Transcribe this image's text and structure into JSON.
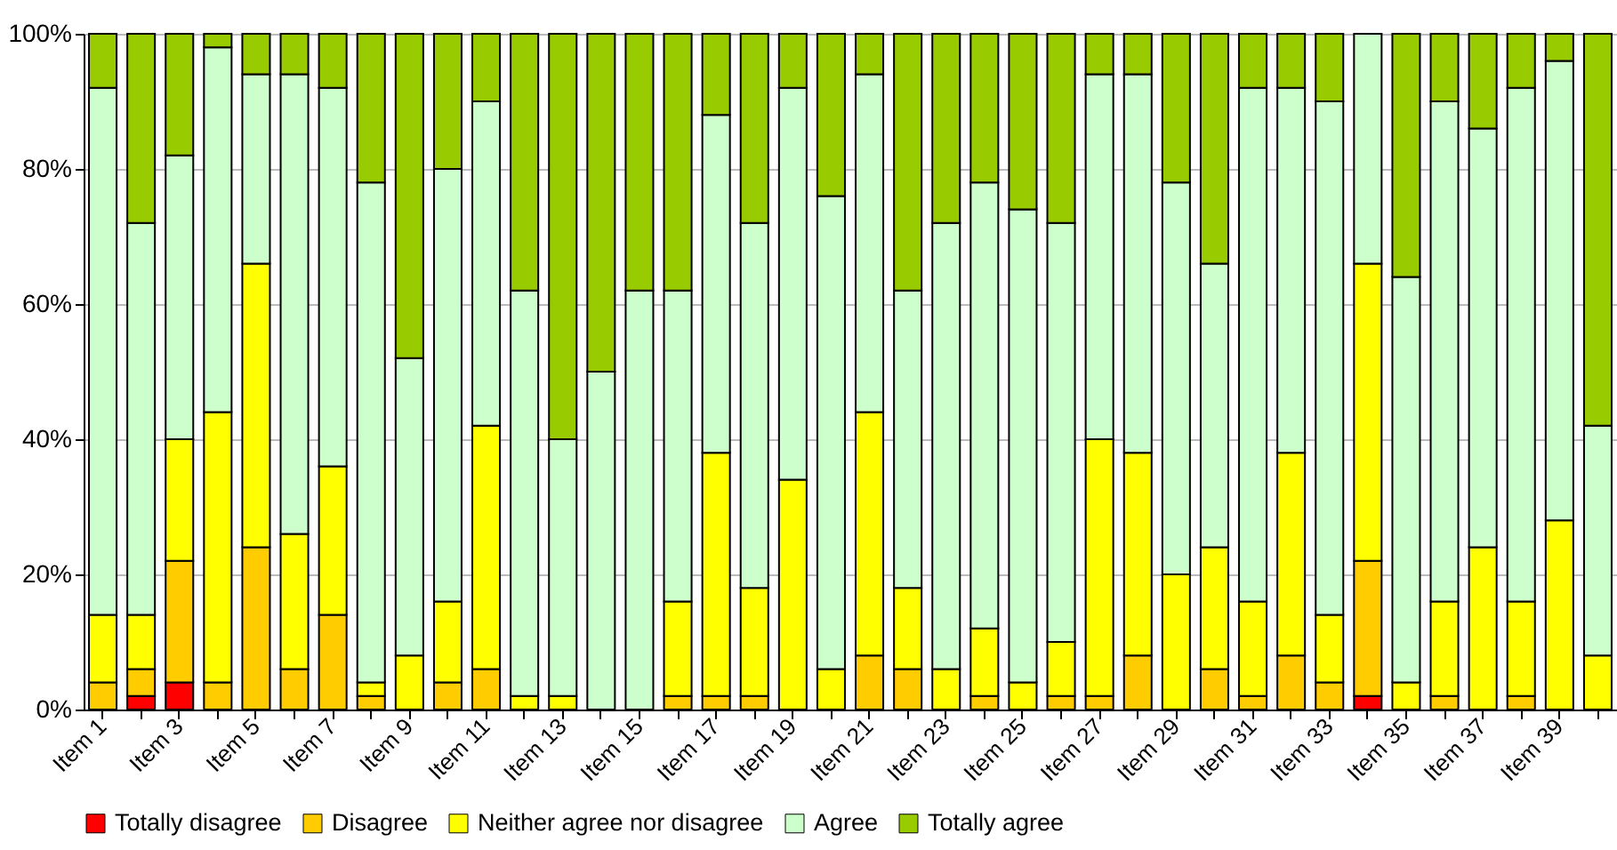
{
  "chart_data": {
    "type": "bar",
    "stacked": true,
    "categories": [
      "Item 1",
      null,
      "Item 3",
      null,
      "Item 5",
      null,
      "Item 7",
      null,
      "Item 9",
      null,
      "Item 11",
      null,
      "Item 13",
      null,
      "Item 15",
      null,
      "Item 17",
      null,
      "Item 19",
      null,
      "Item 21",
      null,
      "Item 23",
      null,
      "Item 25",
      null,
      "Item 27",
      null,
      "Item 29",
      null,
      "Item 31",
      null,
      "Item 33",
      null,
      "Item 35",
      null,
      "Item 37",
      null,
      "Item 39",
      null
    ],
    "series": [
      {
        "name": "Totally disagree",
        "color": "#ff0000",
        "values": [
          0,
          2,
          4,
          0,
          0,
          0,
          0,
          0,
          0,
          0,
          0,
          0,
          0,
          0,
          0,
          0,
          0,
          0,
          0,
          0,
          0,
          0,
          0,
          0,
          0,
          0,
          0,
          0,
          0,
          0,
          0,
          0,
          0,
          2,
          0,
          0,
          0,
          0,
          0,
          0
        ]
      },
      {
        "name": "Disagree",
        "color": "#ffcc00",
        "values": [
          4,
          4,
          18,
          4,
          24,
          6,
          14,
          2,
          0,
          4,
          6,
          0,
          0,
          0,
          0,
          2,
          2,
          2,
          0,
          0,
          8,
          6,
          0,
          2,
          0,
          2,
          2,
          8,
          0,
          6,
          2,
          8,
          4,
          20,
          0,
          2,
          0,
          2,
          0,
          0
        ]
      },
      {
        "name": "Neither agree nor disagree",
        "color": "#ffff00",
        "values": [
          10,
          8,
          18,
          40,
          42,
          20,
          22,
          2,
          8,
          12,
          36,
          2,
          2,
          0,
          0,
          14,
          36,
          16,
          34,
          6,
          36,
          12,
          6,
          10,
          4,
          8,
          38,
          30,
          20,
          18,
          14,
          30,
          10,
          44,
          4,
          14,
          24,
          14,
          28,
          8
        ]
      },
      {
        "name": "Agree",
        "color": "#ccffcc",
        "values": [
          78,
          58,
          42,
          54,
          28,
          68,
          56,
          74,
          44,
          64,
          48,
          60,
          38,
          50,
          62,
          46,
          50,
          54,
          58,
          70,
          50,
          44,
          66,
          66,
          70,
          62,
          54,
          56,
          58,
          42,
          76,
          54,
          76,
          34,
          60,
          74,
          62,
          76,
          68,
          34
        ]
      },
      {
        "name": "Totally agree",
        "color": "#99cc00",
        "values": [
          8,
          28,
          18,
          2,
          6,
          6,
          8,
          22,
          48,
          20,
          10,
          38,
          60,
          50,
          38,
          38,
          12,
          28,
          8,
          24,
          6,
          38,
          28,
          22,
          26,
          28,
          6,
          6,
          22,
          34,
          8,
          8,
          10,
          0,
          36,
          10,
          14,
          8,
          4,
          58
        ]
      }
    ],
    "ylim": [
      0,
      100
    ],
    "yticks": [
      {
        "value": 0,
        "label": "0%"
      },
      {
        "value": 20,
        "label": "20%"
      },
      {
        "value": 40,
        "label": "40%"
      },
      {
        "value": 60,
        "label": "60%"
      },
      {
        "value": 80,
        "label": "80%"
      },
      {
        "value": 100,
        "label": "100%"
      }
    ],
    "grid": "y",
    "legend": "bottom"
  }
}
